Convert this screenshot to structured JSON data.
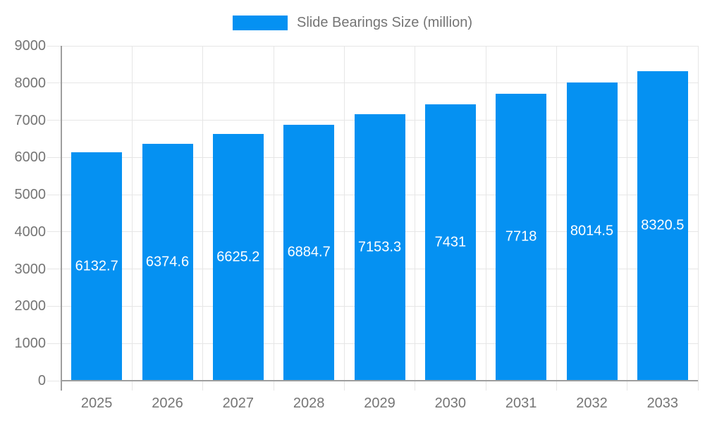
{
  "legend": {
    "label": "Slide Bearings Size (million)"
  },
  "chart_data": {
    "type": "bar",
    "title": "Slide Bearings Size (million)",
    "categories": [
      "2025",
      "2026",
      "2027",
      "2028",
      "2029",
      "2030",
      "2031",
      "2032",
      "2033"
    ],
    "series": [
      {
        "name": "Slide Bearings Size (million)",
        "values": [
          6132.7,
          6374.6,
          6625.2,
          6884.7,
          7153.3,
          7431,
          7718,
          8014.5,
          8320.5
        ]
      }
    ],
    "value_labels": [
      "6132.7",
      "6374.6",
      "6625.2",
      "6884.7",
      "7153.3",
      "7431",
      "7718",
      "8014.5",
      "8320.5"
    ],
    "xlabel": "",
    "ylabel": "",
    "ylim": [
      0,
      9000
    ],
    "ytick_step": 1000,
    "ytick_labels": [
      "0",
      "1000",
      "2000",
      "3000",
      "4000",
      "5000",
      "6000",
      "7000",
      "8000",
      "9000"
    ],
    "grid": "on",
    "legend_position": "top-center",
    "colors": {
      "bar": "#0591f2",
      "axis_text": "#757575",
      "gridline": "#e6e6e6",
      "axis_line": "#9e9e9e",
      "value_label_text": "#ffffff",
      "background": "#ffffff"
    }
  }
}
